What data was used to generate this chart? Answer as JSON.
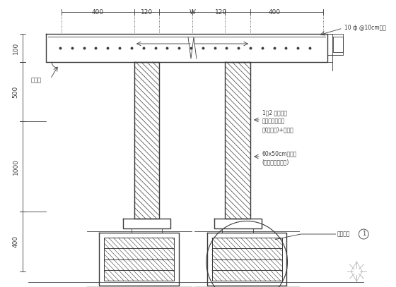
{
  "bg_color": "#ffffff",
  "line_color": "#3a3a3a",
  "dim_labels": [
    "400",
    "120",
    "W",
    "120",
    "400"
  ],
  "left_dim_labels": [
    "100",
    "500",
    "1000",
    "400"
  ],
  "annotation_lines": [
    "1：2 防水粉光",
    "商任施工砌水泥",
    "漆(色另定)+防霉型",
    "60x50cm铝目页",
    "(附不锈钢防藻网)"
  ],
  "label_drip": "滴水线",
  "label_angle": "10 ф @10cm复角",
  "label_callout": "另祥操施",
  "circle_note": "1",
  "main_lw": 1.0,
  "thin_lw": 0.6
}
